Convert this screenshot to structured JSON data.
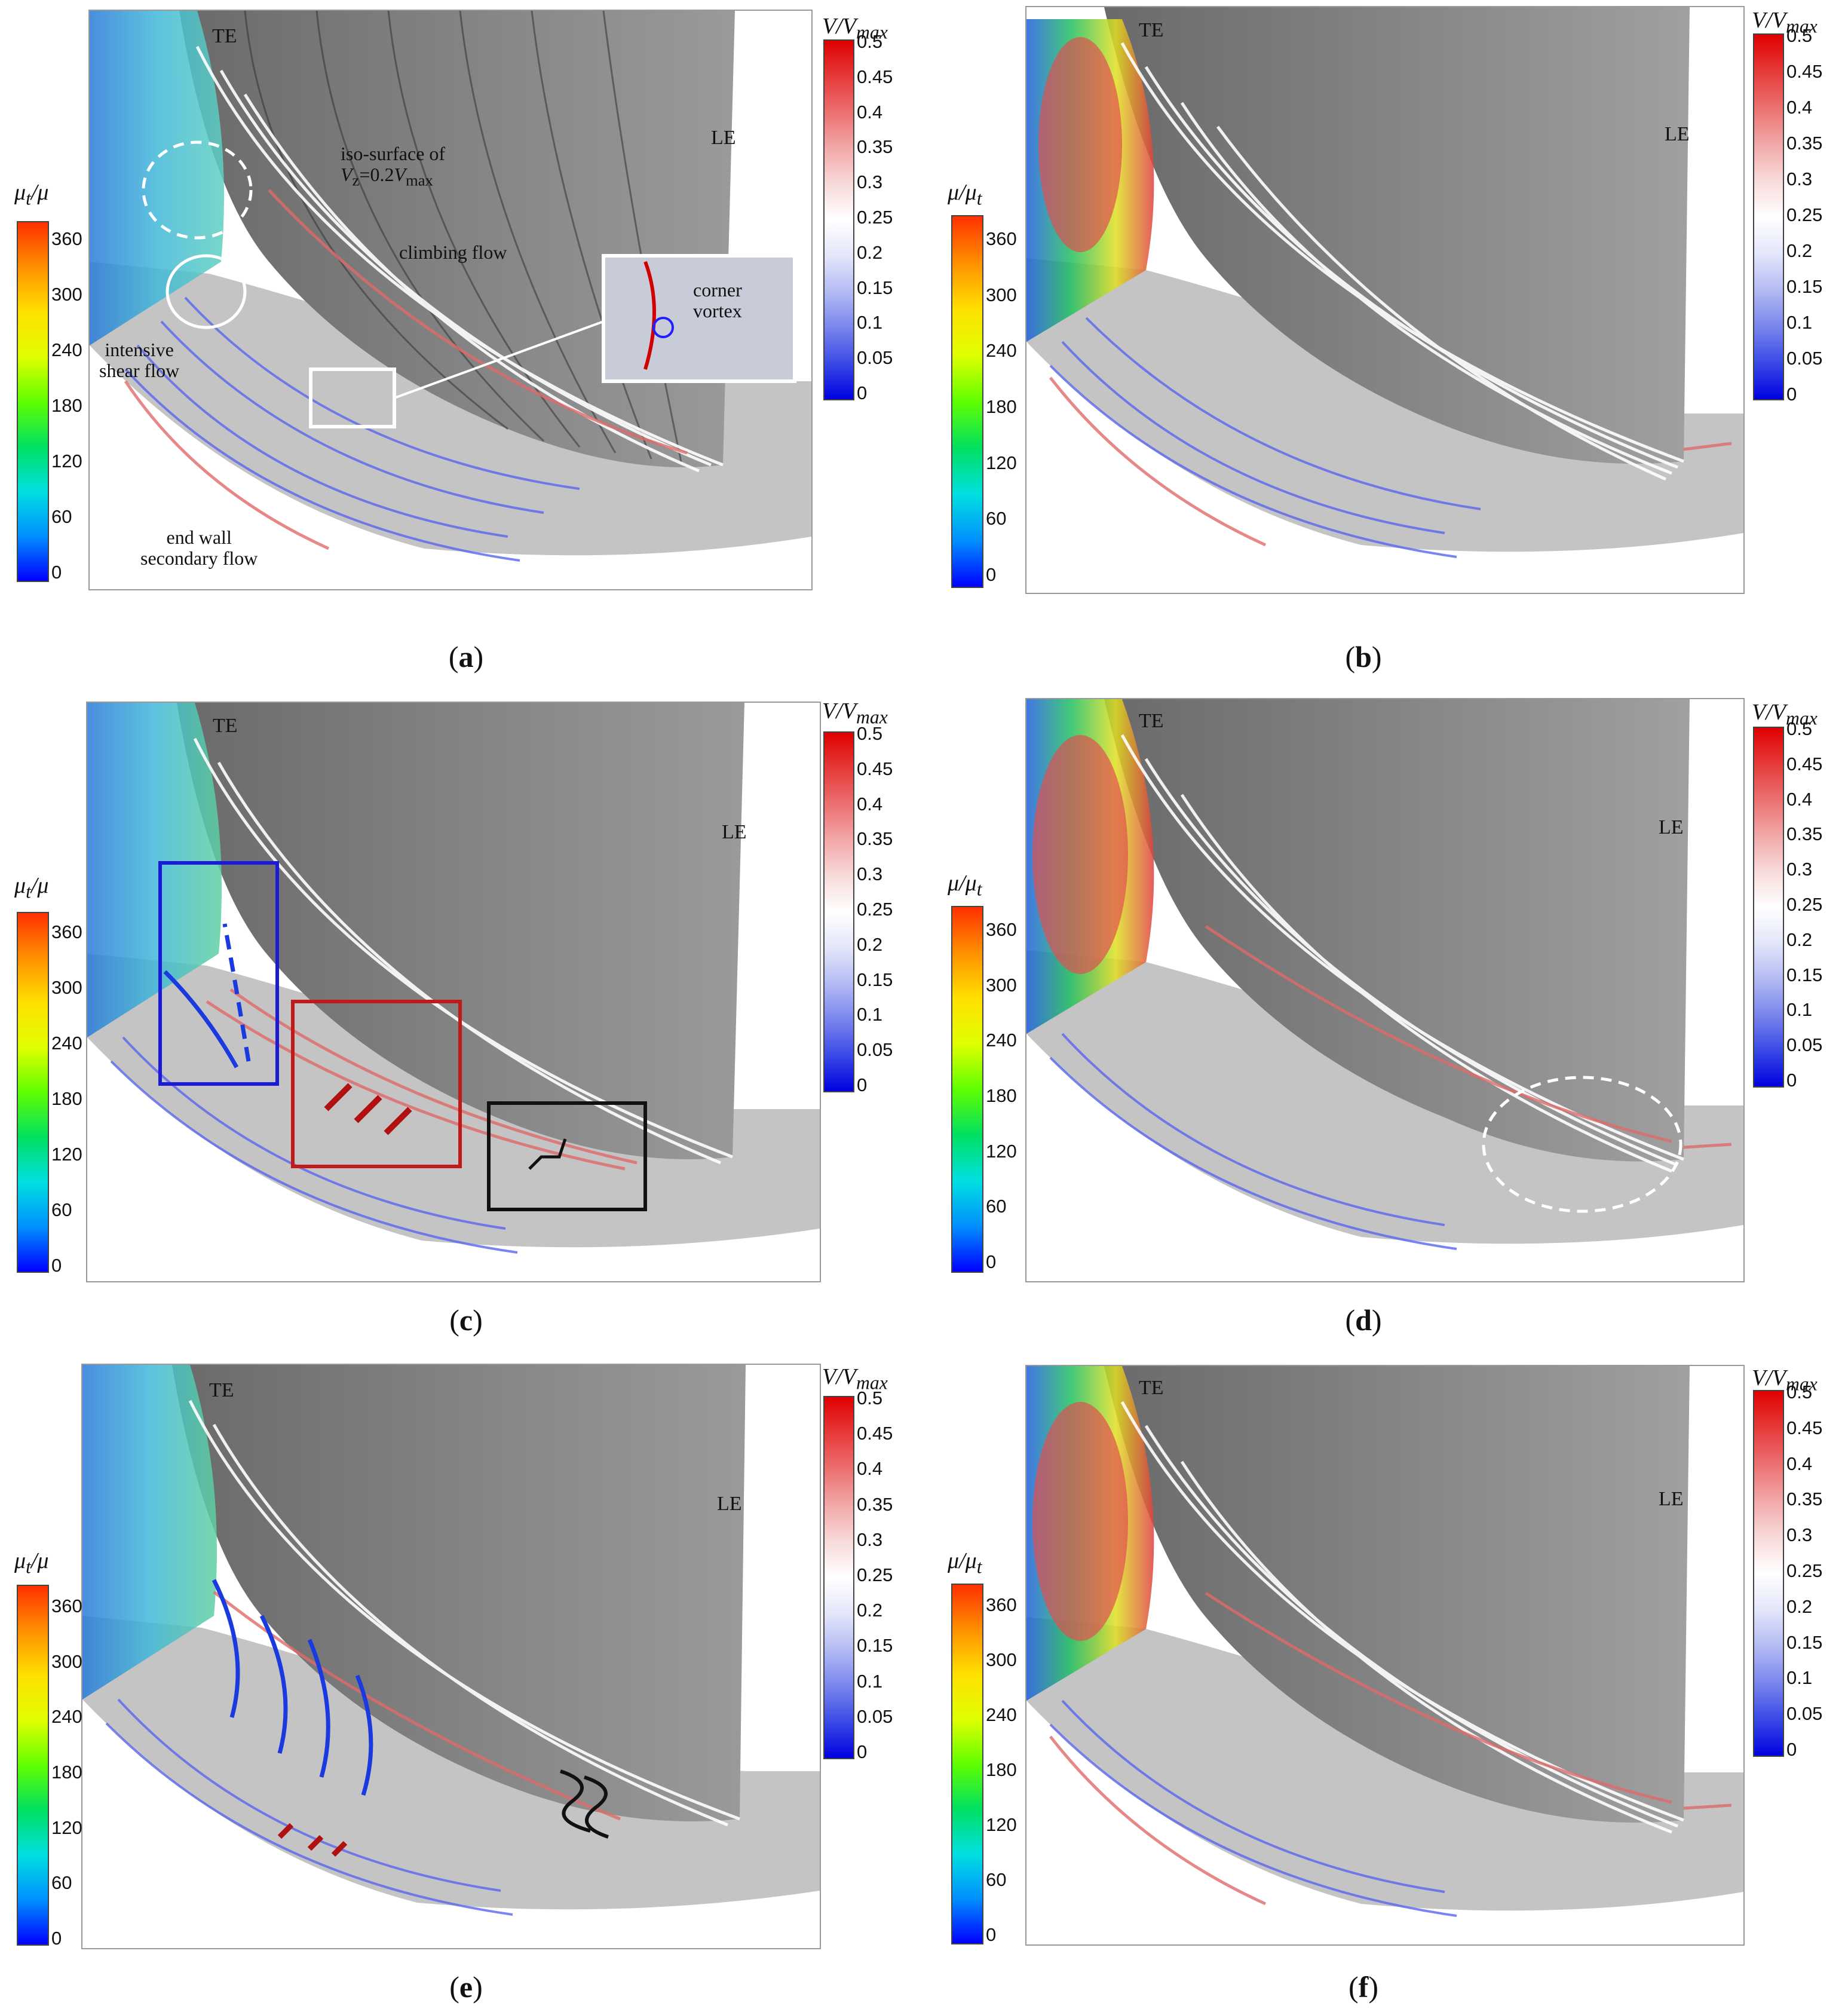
{
  "colors": {
    "vel_bar": [
      "#0000e0",
      "#3a4ae6",
      "#7a86ec",
      "#b3bbf3",
      "#e4e6fa",
      "#ffffff",
      "#f8dada",
      "#f2a8a8",
      "#ec7070",
      "#e63a3a",
      "#e00000"
    ],
    "visc_bar": [
      "#0000ff",
      "#0090ff",
      "#00e0e0",
      "#00e060",
      "#60ff00",
      "#e0ff00",
      "#ffe000",
      "#ff9000",
      "#ff3000"
    ],
    "blade": "#7c7c7c",
    "endwall": "#bcbcbc",
    "stream_blue": "#4a5ae8",
    "stream_white": "#ffffff",
    "stream_red": "#e06060"
  },
  "velocity_bar": {
    "title_var": "V",
    "title_sep": "/",
    "title_den": "V",
    "title_sub": "max",
    "ticks": [
      "0.5",
      "0.45",
      "0.4",
      "0.35",
      "0.3",
      "0.25",
      "0.2",
      "0.15",
      "0.1",
      "0.05",
      "0"
    ]
  },
  "viscosity_bar_a": {
    "title": "μ",
    "title_sub": "t",
    "title_rest": "/μ"
  },
  "viscosity_bar_b": {
    "title": "μ/μ",
    "title_sub": "t"
  },
  "viscosity_ticks": [
    "360",
    "300",
    "240",
    "180",
    "120",
    "60",
    "0"
  ],
  "labels": {
    "te": "TE",
    "le": "LE"
  },
  "panels": [
    {
      "id": "a",
      "caption_open": "(",
      "caption_letter": "a",
      "caption_close": ")"
    },
    {
      "id": "b",
      "caption_open": "(",
      "caption_letter": "b",
      "caption_close": ")"
    },
    {
      "id": "c",
      "caption_open": "(",
      "caption_letter": "c",
      "caption_close": ")"
    },
    {
      "id": "d",
      "caption_open": "(",
      "caption_letter": "d",
      "caption_close": ")"
    },
    {
      "id": "e",
      "caption_open": "(",
      "caption_letter": "e",
      "caption_close": ")"
    },
    {
      "id": "f",
      "caption_open": "(",
      "caption_letter": "f",
      "caption_close": ")"
    }
  ],
  "annotations_a": {
    "iso_line1": "iso-surface of",
    "iso_v": "V",
    "iso_sub_z": "z",
    "iso_eq": "=0.2",
    "iso_vmax": "V",
    "iso_sub_max": "max",
    "climbing": "climbing flow",
    "corner_line1": "corner",
    "corner_line2": "vortex",
    "shear_line1": "intensive",
    "shear_line2": "shear flow",
    "endwall_line1": "end wall",
    "endwall_line2": "secondary flow"
  }
}
